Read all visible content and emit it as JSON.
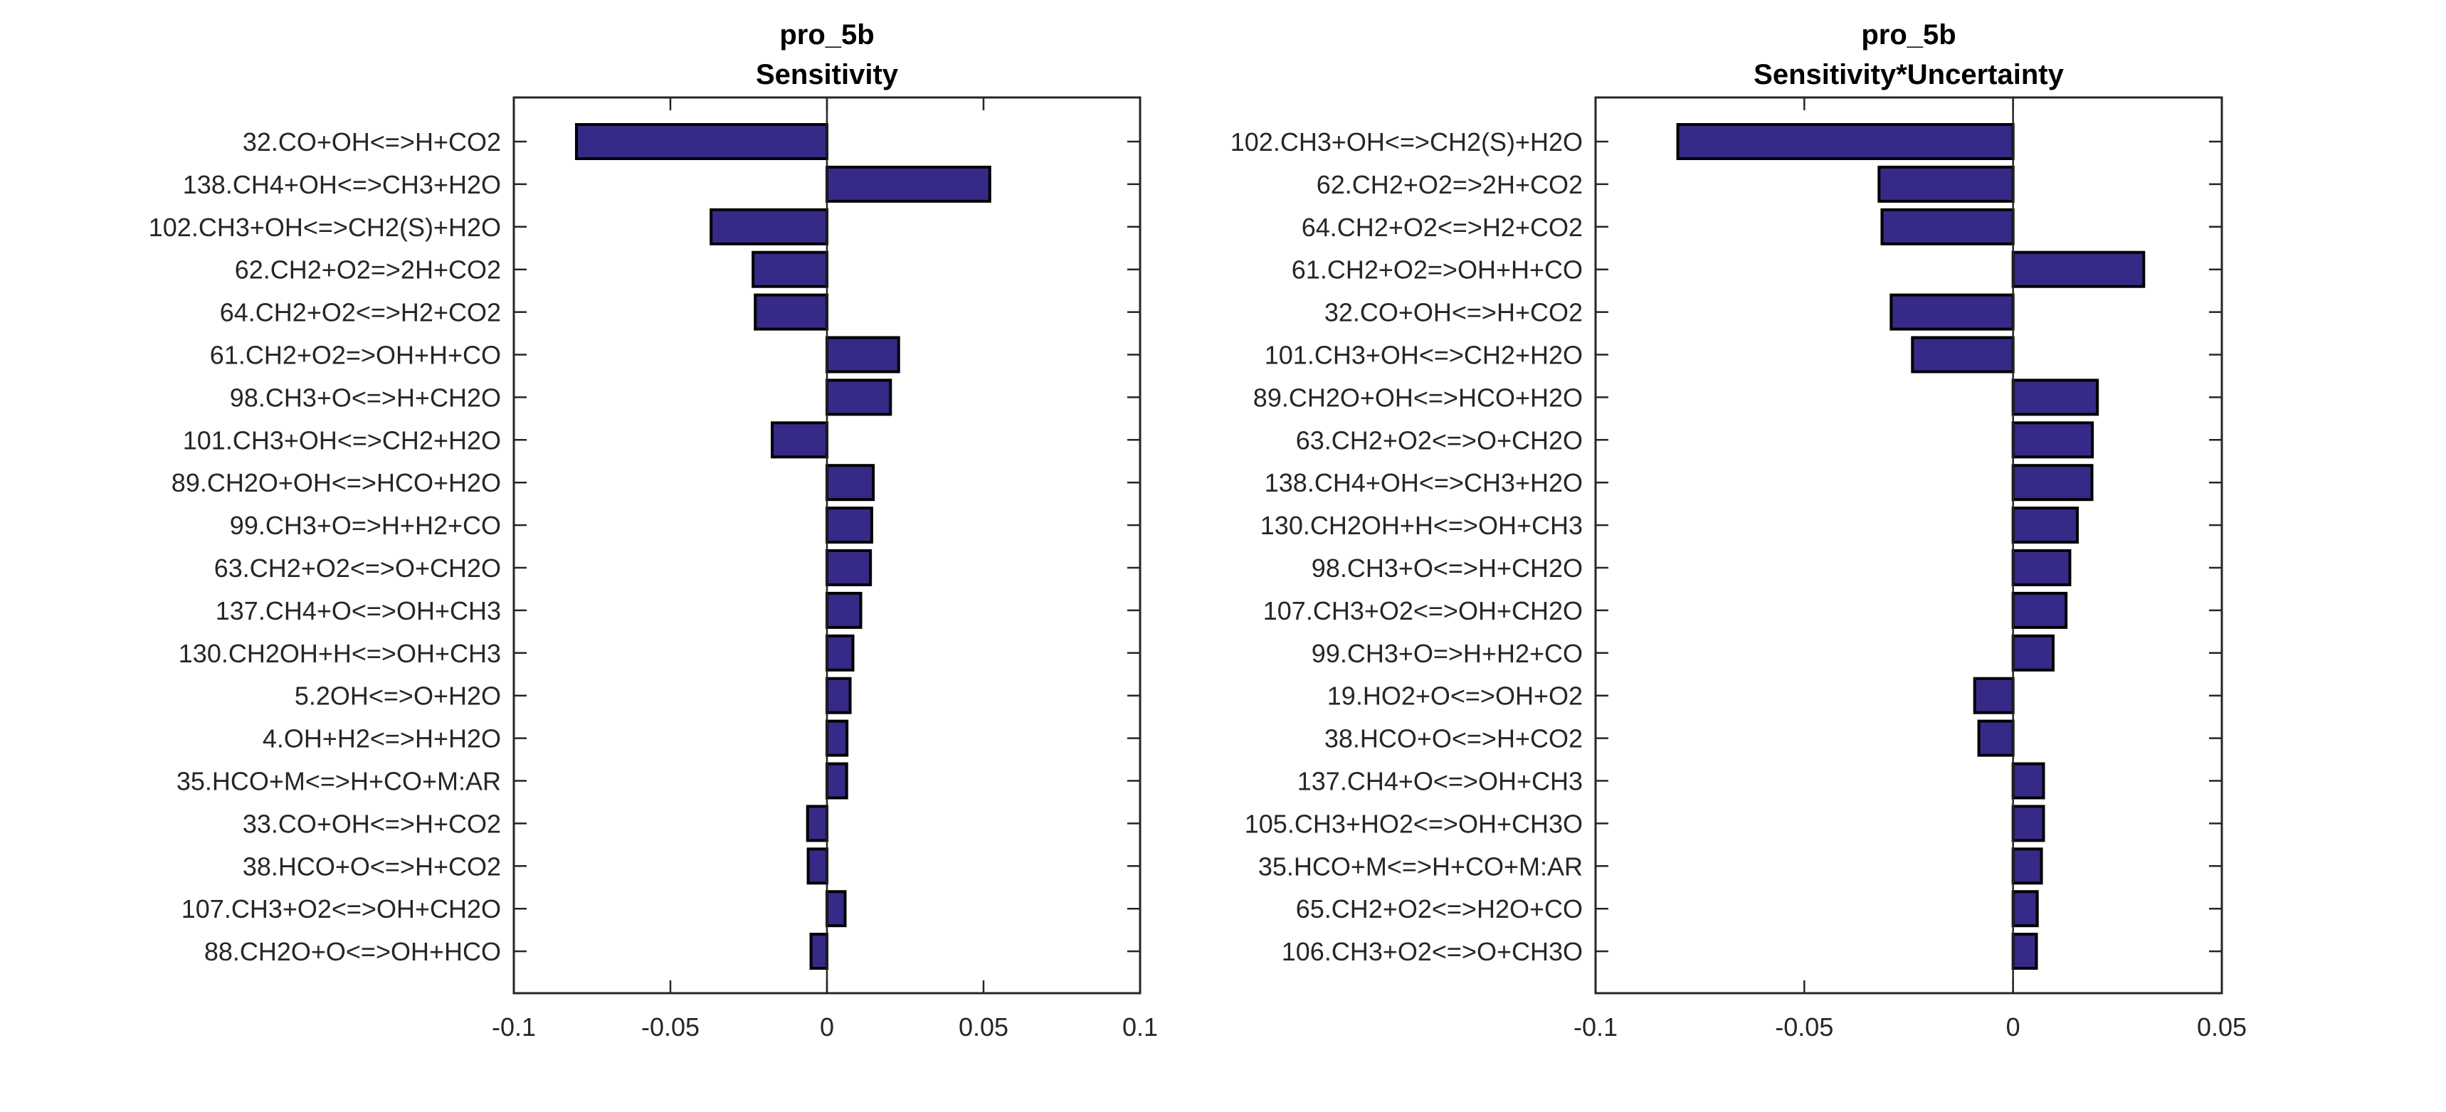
{
  "chart_data": [
    {
      "type": "bar",
      "orientation": "horizontal",
      "title": [
        "pro_5b",
        "Sensitivity"
      ],
      "xlabel": "",
      "ylabel": "",
      "xlim": [
        -0.1,
        0.1
      ],
      "xticks": [
        -0.1,
        -0.05,
        0,
        0.05,
        0.1
      ],
      "xtick_labels": [
        "-0.1",
        "-0.05",
        "0",
        "0.05",
        "0.1"
      ],
      "grid": false,
      "bar_color": "#352a87",
      "categories": [
        "32.CO+OH<=>H+CO2",
        "138.CH4+OH<=>CH3+H2O",
        "102.CH3+OH<=>CH2(S)+H2O",
        "62.CH2+O2=>2H+CO2",
        "64.CH2+O2<=>H2+CO2",
        "61.CH2+O2=>OH+H+CO",
        "98.CH3+O<=>H+CH2O",
        "101.CH3+OH<=>CH2+H2O",
        "89.CH2O+OH<=>HCO+H2O",
        "99.CH3+O=>H+H2+CO",
        "63.CH2+O2<=>O+CH2O",
        "137.CH4+O<=>OH+CH3",
        "130.CH2OH+H<=>OH+CH3",
        "5.2OH<=>O+H2O",
        "4.OH+H2<=>H+H2O",
        "35.HCO+M<=>H+CO+M:AR",
        "33.CO+OH<=>H+CO2",
        "38.HCO+O<=>H+CO2",
        "107.CH3+O2<=>OH+CH2O",
        "88.CH2O+O<=>OH+HCO"
      ],
      "values": [
        -0.08,
        0.052,
        -0.037,
        -0.0236,
        -0.0229,
        0.0229,
        0.0203,
        -0.0175,
        0.0148,
        0.0143,
        0.0139,
        0.0108,
        0.0083,
        0.0074,
        0.0064,
        0.0063,
        -0.0062,
        -0.006,
        0.0058,
        -0.0051
      ]
    },
    {
      "type": "bar",
      "orientation": "horizontal",
      "title": [
        "pro_5b",
        "Sensitivity*Uncertainty"
      ],
      "xlabel": "",
      "ylabel": "",
      "xlim": [
        -0.1,
        0.05
      ],
      "xticks": [
        -0.1,
        -0.05,
        0,
        0.05
      ],
      "xtick_labels": [
        "-0.1",
        "-0.05",
        "0",
        "0.05"
      ],
      "grid": false,
      "bar_color": "#352a87",
      "categories": [
        "102.CH3+OH<=>CH2(S)+H2O",
        "62.CH2+O2=>2H+CO2",
        "64.CH2+O2<=>H2+CO2",
        "61.CH2+O2=>OH+H+CO",
        "32.CO+OH<=>H+CO2",
        "101.CH3+OH<=>CH2+H2O",
        "89.CH2O+OH<=>HCO+H2O",
        "63.CH2+O2<=>O+CH2O",
        "138.CH4+OH<=>CH3+H2O",
        "130.CH2OH+H<=>OH+CH3",
        "98.CH3+O<=>H+CH2O",
        "107.CH3+O2<=>OH+CH2O",
        "99.CH3+O=>H+H2+CO",
        "19.HO2+O<=>OH+O2",
        "38.HCO+O<=>H+CO2",
        "137.CH4+O<=>OH+CH3",
        "105.CH3+HO2<=>OH+CH3O",
        "35.HCO+M<=>H+CO+M:AR",
        "65.CH2+O2<=>H2O+CO",
        "106.CH3+O2<=>O+CH3O"
      ],
      "values": [
        -0.0803,
        -0.0321,
        -0.0314,
        0.0313,
        -0.0292,
        -0.0241,
        0.0202,
        0.019,
        0.0189,
        0.0154,
        0.0136,
        0.0127,
        0.0096,
        -0.0092,
        -0.0082,
        0.0073,
        0.0073,
        0.0068,
        0.0058,
        0.0056
      ]
    }
  ]
}
